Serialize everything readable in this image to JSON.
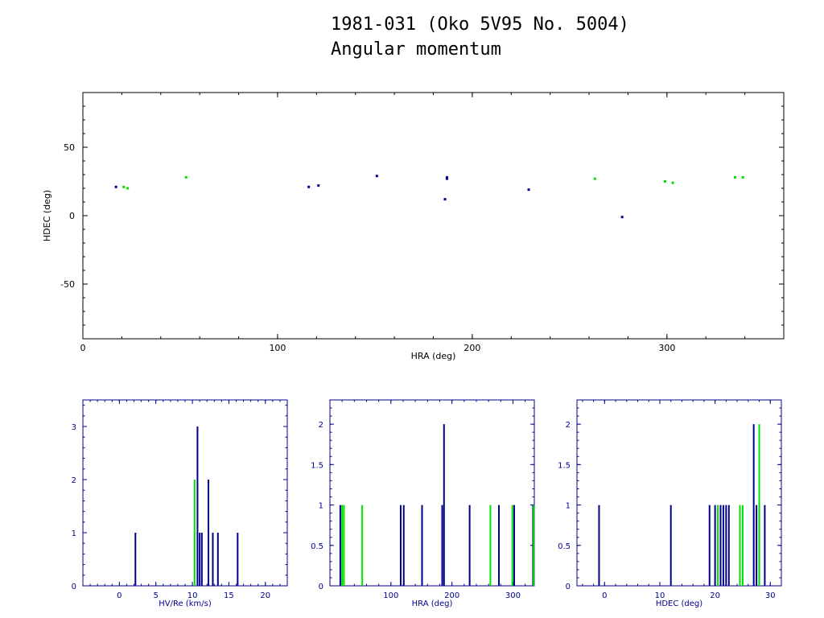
{
  "header": {
    "title": "1981-031 (Oko 5V95 No. 5004)",
    "subtitle": "Angular momentum"
  },
  "colors": {
    "series_a": "#00008b",
    "series_b": "#00e000",
    "frame": "#000000",
    "hist_axis": "#00008b"
  },
  "chart_data": [
    {
      "type": "scatter",
      "xlabel": "HRA (deg)",
      "ylabel": "HDEC (deg)",
      "xlim": [
        0,
        360
      ],
      "ylim": [
        -90,
        90
      ],
      "x_ticks": [
        0,
        100,
        200,
        300
      ],
      "y_ticks": [
        -50,
        0,
        50
      ],
      "grid": false,
      "series": [
        {
          "color": "#00008b",
          "x": [
            17,
            116,
            121,
            151,
            186,
            187,
            187,
            229,
            277
          ],
          "y": [
            21,
            21,
            22,
            29,
            12,
            27,
            28,
            19,
            -1
          ]
        },
        {
          "color": "#00e000",
          "x": [
            21,
            23,
            53,
            263,
            299,
            303,
            335,
            339
          ],
          "y": [
            21,
            20,
            28,
            27,
            25,
            24,
            28,
            28
          ]
        }
      ]
    },
    {
      "type": "bar",
      "xlabel": "HV/Re (km/s)",
      "ylabel": "",
      "xlim": [
        -5,
        23
      ],
      "ylim": [
        0,
        3.5
      ],
      "x_ticks": [
        0,
        5,
        10,
        15,
        20
      ],
      "y_ticks": [
        0,
        1,
        2,
        3
      ],
      "series": [
        {
          "color": "#00008b",
          "x": [
            2.2,
            10.7,
            11.0,
            11.3,
            12.2,
            12.8,
            13.5,
            16.2
          ],
          "y": [
            1,
            3,
            1,
            1,
            2,
            1,
            1,
            1
          ]
        },
        {
          "color": "#00e000",
          "x": [
            10.3
          ],
          "y": [
            2
          ]
        }
      ]
    },
    {
      "type": "bar",
      "xlabel": "HRA (deg)",
      "ylabel": "",
      "xlim": [
        0,
        335
      ],
      "ylim": [
        0,
        2.3
      ],
      "x_ticks": [
        100,
        200,
        300
      ],
      "y_ticks": [
        0,
        0.5,
        1,
        1.5,
        2
      ],
      "series": [
        {
          "color": "#00008b",
          "x": [
            17,
            116,
            121,
            151,
            184,
            187,
            229,
            277,
            302,
            333
          ],
          "y": [
            1,
            1,
            1,
            1,
            1,
            2,
            1,
            1,
            1,
            1
          ]
        },
        {
          "color": "#00e000",
          "x": [
            20,
            23,
            53,
            263,
            299,
            334
          ],
          "y": [
            1,
            1,
            1,
            1,
            1,
            1
          ]
        }
      ]
    },
    {
      "type": "bar",
      "xlabel": "HDEC (deg)",
      "ylabel": "",
      "xlim": [
        -5,
        32
      ],
      "ylim": [
        0,
        2.3
      ],
      "x_ticks": [
        0,
        10,
        20,
        30
      ],
      "y_ticks": [
        0,
        0.5,
        1,
        1.5,
        2
      ],
      "series": [
        {
          "color": "#00008b",
          "x": [
            -1,
            12,
            19,
            20,
            21,
            21.5,
            22,
            22.5,
            27,
            27.5,
            28,
            29
          ],
          "y": [
            1,
            1,
            1,
            1,
            1,
            1,
            1,
            1,
            2,
            1,
            1,
            1
          ]
        },
        {
          "color": "#00e000",
          "x": [
            20.5,
            24.5,
            25,
            28
          ],
          "y": [
            1,
            1,
            1,
            2
          ]
        }
      ]
    }
  ]
}
